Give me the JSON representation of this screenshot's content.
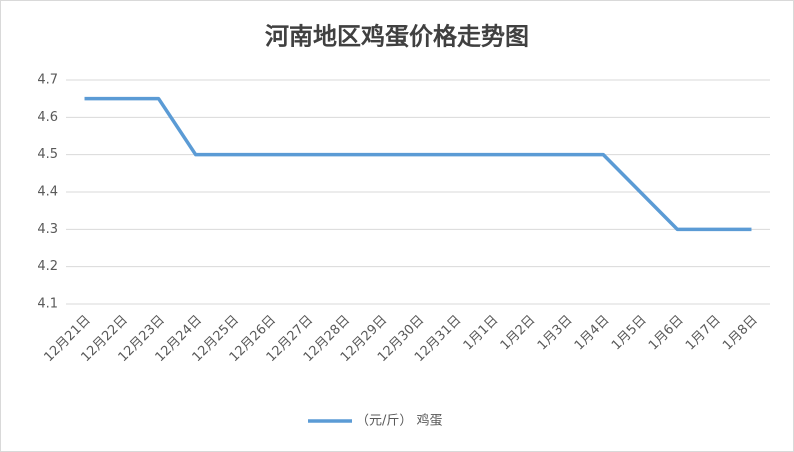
{
  "chart_data": {
    "type": "line",
    "title": "河南地区鸡蛋价格走势图",
    "categories": [
      "12月21日",
      "12月22日",
      "12月23日",
      "12月24日",
      "12月25日",
      "12月26日",
      "12月27日",
      "12月28日",
      "12月29日",
      "12月30日",
      "12月31日",
      "1月1日",
      "1月2日",
      "1月3日",
      "1月4日",
      "1月5日",
      "1月6日",
      "1月7日",
      "1月8日"
    ],
    "series": [
      {
        "name": "（元/斤） 鸡蛋",
        "color": "#5b9bd5",
        "values": [
          4.65,
          4.65,
          4.65,
          4.5,
          4.5,
          4.5,
          4.5,
          4.5,
          4.5,
          4.5,
          4.5,
          4.5,
          4.5,
          4.5,
          4.5,
          4.4,
          4.3,
          4.3,
          4.3
        ]
      }
    ],
    "ylim": [
      4.1,
      4.7
    ],
    "yticks": [
      4.1,
      4.2,
      4.3,
      4.4,
      4.5,
      4.6,
      4.7
    ],
    "grid": true,
    "legend": "bottom"
  }
}
